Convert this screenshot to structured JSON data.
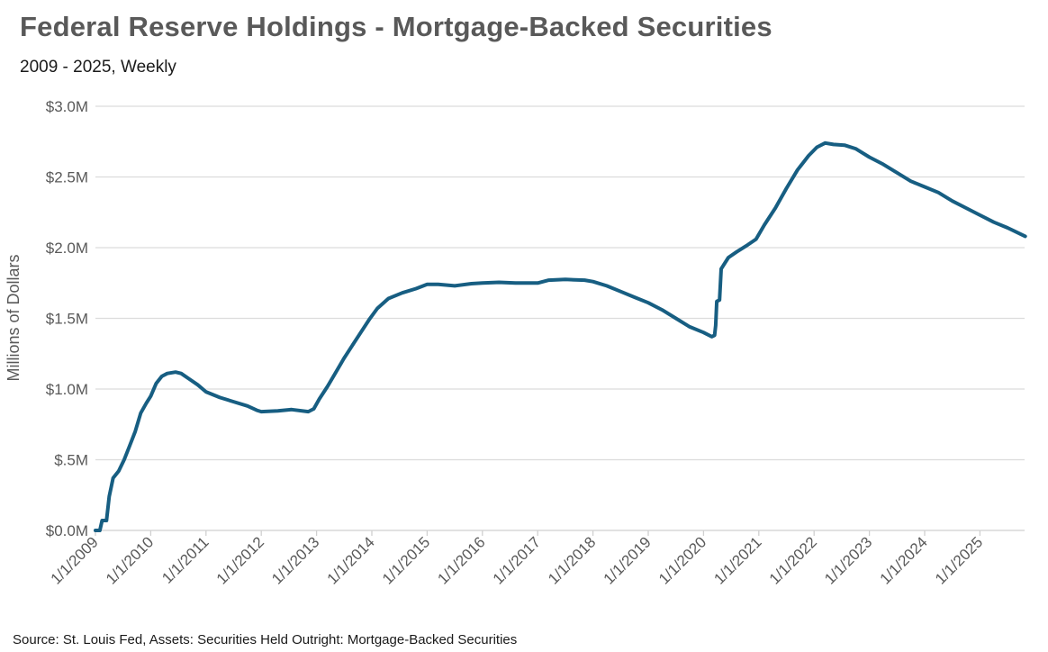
{
  "chart_data": {
    "type": "line",
    "title": "Federal Reserve Holdings - Mortgage-Backed Securities",
    "subtitle": "2009 - 2025, Weekly",
    "xlabel": "",
    "ylabel": "Millions of Dollars",
    "source": "Source: St. Louis Fed, Assets: Securities Held Outright: Mortgage-Backed Securities",
    "ylim": [
      0,
      3.0
    ],
    "xlim": [
      2009.0,
      2025.82
    ],
    "grid": true,
    "line_color": "#175e82",
    "y_ticks": [
      {
        "value": 0,
        "label": "$0.0M"
      },
      {
        "value": 0.5,
        "label": "$.5M"
      },
      {
        "value": 1.0,
        "label": "$1.0M"
      },
      {
        "value": 1.5,
        "label": "$1.5M"
      },
      {
        "value": 2.0,
        "label": "$2.0M"
      },
      {
        "value": 2.5,
        "label": "$2.5M"
      },
      {
        "value": 3.0,
        "label": "$3.0M"
      }
    ],
    "x_ticks": [
      {
        "value": 2009,
        "label": "1/1/2009"
      },
      {
        "value": 2010,
        "label": "1/1/2010"
      },
      {
        "value": 2011,
        "label": "1/1/2011"
      },
      {
        "value": 2012,
        "label": "1/1/2012"
      },
      {
        "value": 2013,
        "label": "1/1/2013"
      },
      {
        "value": 2014,
        "label": "1/1/2014"
      },
      {
        "value": 2015,
        "label": "1/1/2015"
      },
      {
        "value": 2016,
        "label": "1/1/2016"
      },
      {
        "value": 2017,
        "label": "1/1/2017"
      },
      {
        "value": 2018,
        "label": "1/1/2018"
      },
      {
        "value": 2019,
        "label": "1/1/2019"
      },
      {
        "value": 2020,
        "label": "1/1/2020"
      },
      {
        "value": 2021,
        "label": "1/1/2021"
      },
      {
        "value": 2022,
        "label": "1/1/2022"
      },
      {
        "value": 2023,
        "label": "1/1/2023"
      },
      {
        "value": 2024,
        "label": "1/1/2024"
      },
      {
        "value": 2025,
        "label": "1/1/2025"
      }
    ],
    "series": [
      {
        "name": "Mortgage-Backed Securities",
        "x": [
          2009.0,
          2009.08,
          2009.12,
          2009.2,
          2009.25,
          2009.32,
          2009.42,
          2009.52,
          2009.62,
          2009.72,
          2009.82,
          2009.92,
          2010.0,
          2010.1,
          2010.2,
          2010.3,
          2010.45,
          2010.55,
          2010.7,
          2010.85,
          2011.0,
          2011.25,
          2011.5,
          2011.75,
          2011.92,
          2012.0,
          2012.3,
          2012.55,
          2012.85,
          2012.95,
          2013.05,
          2013.2,
          2013.35,
          2013.5,
          2013.65,
          2013.8,
          2013.95,
          2014.1,
          2014.3,
          2014.55,
          2014.8,
          2015.0,
          2015.2,
          2015.5,
          2015.8,
          2016.0,
          2016.3,
          2016.6,
          2016.9,
          2017.0,
          2017.2,
          2017.5,
          2017.85,
          2018.0,
          2018.25,
          2018.5,
          2018.75,
          2019.0,
          2019.25,
          2019.5,
          2019.75,
          2020.0,
          2020.15,
          2020.2,
          2020.22,
          2020.24,
          2020.29,
          2020.32,
          2020.45,
          2020.6,
          2020.8,
          2020.95,
          2021.1,
          2021.3,
          2021.5,
          2021.7,
          2021.9,
          2022.05,
          2022.2,
          2022.35,
          2022.55,
          2022.75,
          2023.0,
          2023.25,
          2023.5,
          2023.75,
          2024.0,
          2024.25,
          2024.5,
          2024.75,
          2025.0,
          2025.25,
          2025.5,
          2025.82
        ],
        "values": [
          0.0,
          0.0,
          0.07,
          0.07,
          0.24,
          0.37,
          0.42,
          0.5,
          0.6,
          0.7,
          0.83,
          0.9,
          0.95,
          1.04,
          1.09,
          1.11,
          1.12,
          1.11,
          1.07,
          1.03,
          0.98,
          0.94,
          0.91,
          0.88,
          0.85,
          0.84,
          0.845,
          0.855,
          0.84,
          0.86,
          0.93,
          1.02,
          1.12,
          1.22,
          1.31,
          1.4,
          1.49,
          1.57,
          1.64,
          1.68,
          1.71,
          1.74,
          1.74,
          1.73,
          1.745,
          1.75,
          1.755,
          1.75,
          1.75,
          1.75,
          1.77,
          1.775,
          1.77,
          1.76,
          1.73,
          1.69,
          1.65,
          1.61,
          1.56,
          1.5,
          1.44,
          1.4,
          1.37,
          1.38,
          1.45,
          1.62,
          1.63,
          1.85,
          1.93,
          1.97,
          2.02,
          2.06,
          2.16,
          2.28,
          2.42,
          2.55,
          2.65,
          2.71,
          2.74,
          2.73,
          2.725,
          2.7,
          2.64,
          2.59,
          2.53,
          2.47,
          2.43,
          2.39,
          2.33,
          2.28,
          2.23,
          2.18,
          2.14,
          2.08
        ]
      }
    ]
  }
}
